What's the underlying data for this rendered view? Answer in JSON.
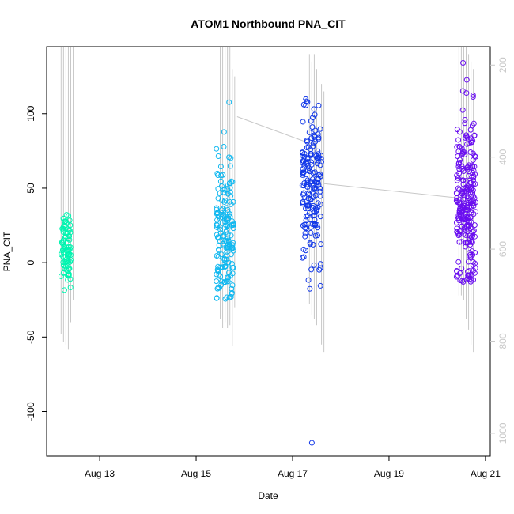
{
  "chart_data": {
    "type": "scatter",
    "title": "ATOM1 Northbound PNA_CIT",
    "xlabel": "Date",
    "ylabel": "PNA_CIT",
    "x_ticks": [
      "Aug 13",
      "Aug 15",
      "Aug 17",
      "Aug 19",
      "Aug 21"
    ],
    "x_tick_days": [
      13,
      15,
      17,
      19,
      21
    ],
    "xlim_days": [
      11.9,
      21.1
    ],
    "ylim": [
      -130,
      145
    ],
    "y_ticks": [
      -100,
      -50,
      0,
      50,
      100
    ],
    "y2_ticks": [
      200,
      400,
      600,
      800,
      1000
    ],
    "y2lim_inverted": [
      1050,
      160
    ],
    "grid": false,
    "marker": "open circle",
    "clusters": [
      {
        "day": 12.3,
        "spread": 0.1,
        "n": 90,
        "ymin": -24,
        "ymax": 35,
        "center": 10,
        "color": "#00f5b0",
        "bars_x": [
          12.2,
          12.25,
          12.3,
          12.35,
          12.4,
          12.45
        ],
        "bars_top": [
          -999,
          -999,
          -999,
          -999,
          -999,
          -999
        ],
        "bars_bottom": [
          -48,
          -53,
          -55,
          -58,
          -40,
          -25
        ]
      },
      {
        "day": 15.6,
        "spread": 0.18,
        "n": 170,
        "ymin": -25,
        "ymax": 108,
        "center": 20,
        "color": "#10b8f0",
        "bars_x": [
          15.5,
          15.55,
          15.6,
          15.65,
          15.7,
          15.75,
          15.8
        ],
        "bars_top": [
          -999,
          -999,
          -999,
          -999,
          150,
          130,
          125
        ],
        "bars_bottom": [
          -38,
          -44,
          -40,
          -44,
          -42,
          -56,
          -30
        ]
      },
      {
        "day": 17.4,
        "spread": 0.2,
        "n": 180,
        "ymin": -18,
        "ymax": 110,
        "center": 50,
        "color": "#1238e8",
        "bars_x": [
          17.35,
          17.4,
          17.45,
          17.5,
          17.55,
          17.6,
          17.65
        ],
        "bars_top": [
          140,
          135,
          140,
          130,
          125,
          120,
          115
        ],
        "bars_bottom": [
          -28,
          -35,
          -38,
          -42,
          -45,
          -55,
          -60
        ]
      },
      {
        "day": 20.6,
        "spread": 0.2,
        "n": 260,
        "ymin": -13,
        "ymax": 135,
        "center": 40,
        "color": "#6a0ef0",
        "bars_x": [
          20.45,
          20.5,
          20.55,
          20.6,
          20.65,
          20.7,
          20.75
        ],
        "bars_top": [
          -999,
          -999,
          -999,
          -999,
          140,
          135,
          130
        ],
        "bars_bottom": [
          -22,
          -22,
          -25,
          -38,
          -45,
          -55,
          -60
        ]
      }
    ],
    "outliers": [
      {
        "day": 17.4,
        "y": -121,
        "color": "#1238e8"
      }
    ],
    "trend_line": [
      {
        "day": 15.85,
        "y": 98
      },
      {
        "day": 17.45,
        "y": 79
      },
      {
        "day": 17.65,
        "y": 53
      },
      {
        "day": 20.55,
        "y": 43
      }
    ]
  }
}
